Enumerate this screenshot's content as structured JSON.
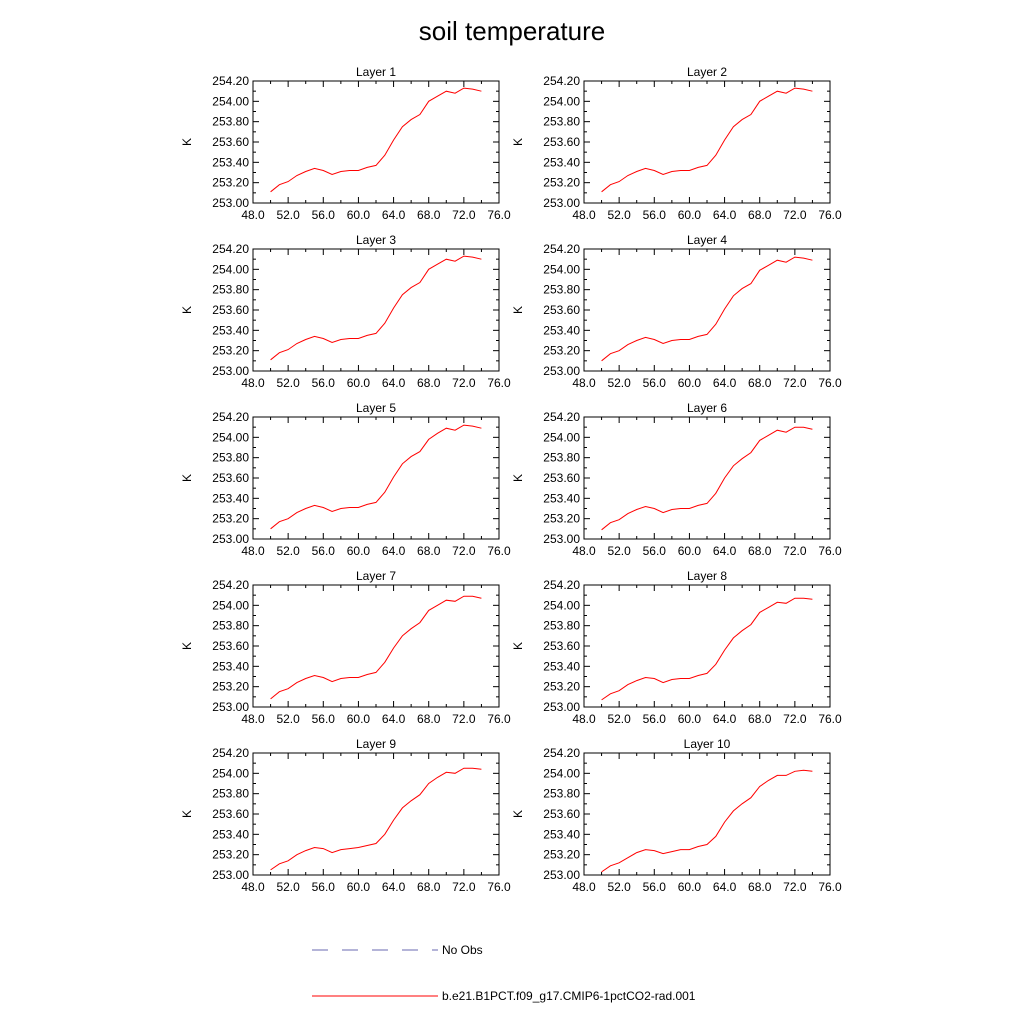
{
  "title": "soil temperature",
  "colors": {
    "model": "#ff0000",
    "obs": "#6a6ab0",
    "axis": "#000000"
  },
  "legend": {
    "obs_label": "No Obs",
    "model_label": "b.e21.B1PCT.f09_g17.CMIP6-1pctCO2-rad.001"
  },
  "chart_data": {
    "type": "line",
    "xlim": [
      48,
      76
    ],
    "ylim": [
      253.0,
      254.2
    ],
    "xticks": [
      "48.0",
      "52.0",
      "56.0",
      "60.0",
      "64.0",
      "68.0",
      "72.0",
      "76.0"
    ],
    "yticks": [
      "253.00",
      "253.20",
      "253.40",
      "253.60",
      "253.80",
      "254.00",
      "254.20"
    ],
    "ylabel": "K",
    "x": [
      50,
      51,
      52,
      53,
      54,
      55,
      56,
      57,
      58,
      59,
      60,
      61,
      62,
      63,
      64,
      65,
      66,
      67,
      68,
      69,
      70,
      71,
      72,
      73,
      74
    ],
    "panels": [
      {
        "title": "Layer 1",
        "values": [
          253.11,
          253.18,
          253.21,
          253.27,
          253.31,
          253.34,
          253.32,
          253.28,
          253.31,
          253.32,
          253.32,
          253.35,
          253.37,
          253.47,
          253.62,
          253.75,
          253.82,
          253.87,
          254.0,
          254.05,
          254.1,
          254.08,
          254.13,
          254.12,
          254.1
        ]
      },
      {
        "title": "Layer 2",
        "values": [
          253.11,
          253.18,
          253.21,
          253.27,
          253.31,
          253.34,
          253.32,
          253.28,
          253.31,
          253.32,
          253.32,
          253.35,
          253.37,
          253.47,
          253.62,
          253.75,
          253.82,
          253.87,
          254.0,
          254.05,
          254.1,
          254.08,
          254.13,
          254.12,
          254.1
        ]
      },
      {
        "title": "Layer 3",
        "values": [
          253.11,
          253.18,
          253.21,
          253.27,
          253.31,
          253.34,
          253.32,
          253.28,
          253.31,
          253.32,
          253.32,
          253.35,
          253.37,
          253.47,
          253.62,
          253.75,
          253.82,
          253.87,
          254.0,
          254.05,
          254.1,
          254.08,
          254.13,
          254.12,
          254.1
        ]
      },
      {
        "title": "Layer 4",
        "values": [
          253.1,
          253.17,
          253.2,
          253.26,
          253.3,
          253.33,
          253.31,
          253.27,
          253.3,
          253.31,
          253.31,
          253.34,
          253.36,
          253.46,
          253.61,
          253.74,
          253.81,
          253.86,
          253.99,
          254.04,
          254.09,
          254.07,
          254.12,
          254.11,
          254.09
        ]
      },
      {
        "title": "Layer 5",
        "values": [
          253.1,
          253.17,
          253.2,
          253.26,
          253.3,
          253.33,
          253.31,
          253.27,
          253.3,
          253.31,
          253.31,
          253.34,
          253.36,
          253.46,
          253.61,
          253.74,
          253.81,
          253.86,
          253.98,
          254.04,
          254.09,
          254.07,
          254.12,
          254.11,
          254.09
        ]
      },
      {
        "title": "Layer 6",
        "values": [
          253.09,
          253.16,
          253.19,
          253.25,
          253.29,
          253.32,
          253.3,
          253.26,
          253.29,
          253.3,
          253.3,
          253.33,
          253.35,
          253.45,
          253.6,
          253.72,
          253.79,
          253.85,
          253.97,
          254.02,
          254.07,
          254.05,
          254.1,
          254.1,
          254.08
        ]
      },
      {
        "title": "Layer 7",
        "values": [
          253.08,
          253.15,
          253.18,
          253.24,
          253.28,
          253.31,
          253.29,
          253.25,
          253.28,
          253.29,
          253.29,
          253.32,
          253.34,
          253.44,
          253.58,
          253.7,
          253.77,
          253.83,
          253.95,
          254.0,
          254.05,
          254.04,
          254.09,
          254.09,
          254.07
        ]
      },
      {
        "title": "Layer 8",
        "values": [
          253.07,
          253.13,
          253.16,
          253.22,
          253.26,
          253.29,
          253.28,
          253.24,
          253.27,
          253.28,
          253.28,
          253.31,
          253.33,
          253.42,
          253.56,
          253.68,
          253.75,
          253.81,
          253.93,
          253.98,
          254.03,
          254.02,
          254.07,
          254.07,
          254.06
        ]
      },
      {
        "title": "Layer 9",
        "values": [
          253.05,
          253.11,
          253.14,
          253.2,
          253.24,
          253.27,
          253.26,
          253.22,
          253.25,
          253.26,
          253.27,
          253.29,
          253.31,
          253.4,
          253.54,
          253.66,
          253.73,
          253.79,
          253.9,
          253.96,
          254.01,
          254.0,
          254.05,
          254.05,
          254.04
        ]
      },
      {
        "title": "Layer 10",
        "values": [
          253.03,
          253.09,
          253.12,
          253.17,
          253.22,
          253.25,
          253.24,
          253.21,
          253.23,
          253.25,
          253.25,
          253.28,
          253.3,
          253.38,
          253.52,
          253.63,
          253.7,
          253.76,
          253.87,
          253.93,
          253.98,
          253.98,
          254.02,
          254.03,
          254.02
        ]
      }
    ]
  }
}
